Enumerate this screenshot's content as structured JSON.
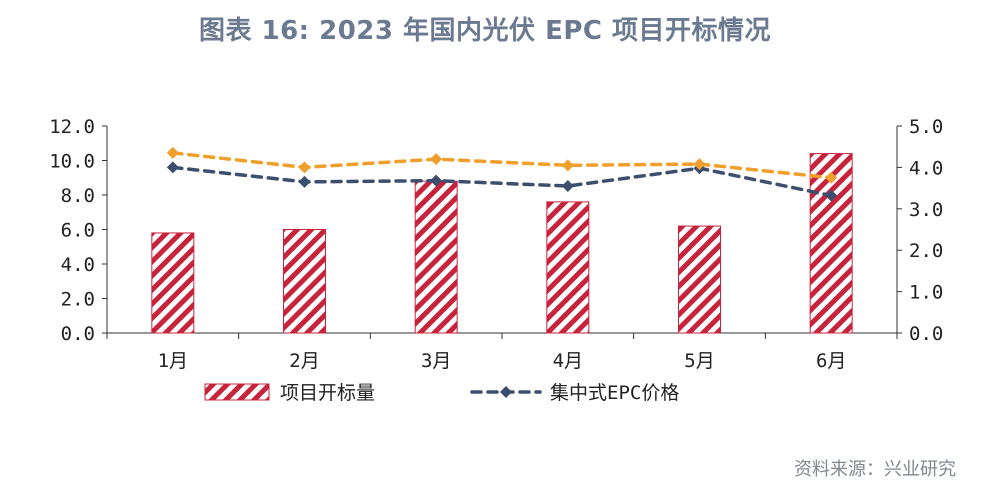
{
  "title": "图表 16: 2023 年国内光伏 EPC 项目开标情况",
  "source": "资料来源：兴业研究",
  "chart_data": {
    "type": "bar",
    "categories": [
      "1月",
      "2月",
      "3月",
      "4月",
      "5月",
      "6月"
    ],
    "series": [
      {
        "name": "项目开标量",
        "type": "bar",
        "axis": "left",
        "values": [
          5.8,
          6.0,
          8.8,
          7.6,
          6.2,
          10.4
        ],
        "color": "#c8233c"
      },
      {
        "name": "集中式EPC价格",
        "type": "line",
        "axis": "right",
        "values": [
          4.0,
          3.65,
          3.68,
          3.55,
          3.98,
          3.32
        ],
        "color": "#3c4f6e"
      },
      {
        "type": "line",
        "axis": "right",
        "values": [
          4.35,
          4.0,
          4.2,
          4.05,
          4.08,
          3.75
        ],
        "color": "#f0a02a"
      }
    ],
    "yleft": {
      "ylim": [
        0,
        12
      ],
      "ticks": [
        "0.0",
        "2.0",
        "4.0",
        "6.0",
        "8.0",
        "10.0",
        "12.0"
      ]
    },
    "yright": {
      "ylim": [
        0,
        5
      ],
      "ticks": [
        "0.0",
        "1.0",
        "2.0",
        "3.0",
        "4.0",
        "5.0"
      ]
    },
    "legend_position": "bottom",
    "grid": false
  }
}
